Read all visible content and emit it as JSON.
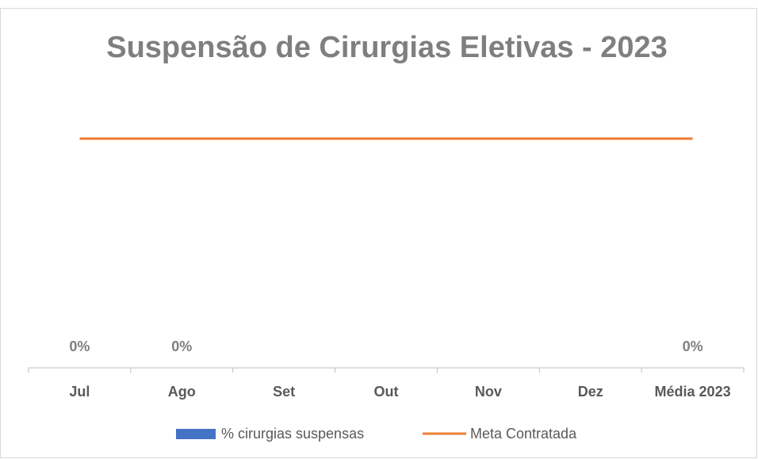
{
  "chart_data": {
    "type": "bar",
    "title": "Suspensão de Cirurgias Eletivas - 2023",
    "categories": [
      "Jul",
      "Ago",
      "Set",
      "Out",
      "Nov",
      "Dez",
      "Média 2023"
    ],
    "ylim": [
      0,
      6
    ],
    "series": [
      {
        "name": "% cirurgias suspensas",
        "type": "bar",
        "color": "#4472c4",
        "values": [
          0,
          0,
          null,
          null,
          null,
          null,
          0
        ],
        "value_labels": [
          "0%",
          "0%",
          null,
          null,
          null,
          null,
          "0%"
        ]
      },
      {
        "name": "Meta Contratada",
        "type": "line",
        "color": "#ed7d31",
        "values": [
          5,
          5,
          5,
          5,
          5,
          5,
          5
        ]
      }
    ]
  }
}
